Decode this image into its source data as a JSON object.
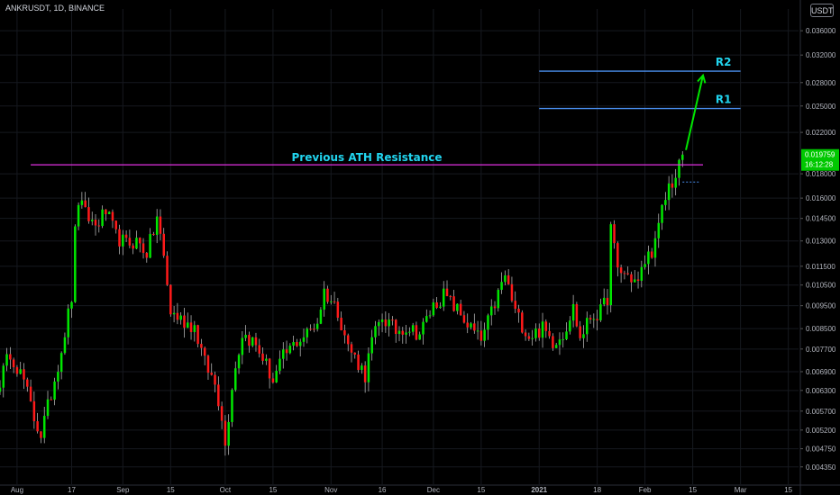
{
  "symbol_line": "ANKRUSDT, 1D, BINANCE",
  "currency": "USDT",
  "colors": {
    "up": "#00e600",
    "down": "#ff1a1a",
    "wick": "#c8c8c8",
    "ath_line": "#e030e0",
    "r_line": "#4a8ff0",
    "annot": "#21d4ee",
    "arrow": "#00e600",
    "price_label_bg": "#00c800",
    "axis_text": "#b2b5be"
  },
  "chart_data": {
    "type": "candlestick",
    "title": "ANKRUSDT, 1D, BINANCE",
    "y_scale": "log",
    "ylim": [
      0.004,
      0.04
    ],
    "xlim": [
      "2020-07-27",
      "2021-03-18"
    ],
    "y_ticks": [
      "0.036000",
      "0.032000",
      "0.028000",
      "0.025000",
      "0.022000",
      "0.019759",
      "0.018000",
      "0.016000",
      "0.014500",
      "0.013000",
      "0.011500",
      "0.010500",
      "0.009500",
      "0.008500",
      "0.007700",
      "0.006900",
      "0.006300",
      "0.005700",
      "0.005200",
      "0.004750",
      "0.004350"
    ],
    "x_ticks": [
      {
        "label": "Aug",
        "date": "2020-08-01"
      },
      {
        "label": "17",
        "date": "2020-08-17"
      },
      {
        "label": "Sep",
        "date": "2020-09-01"
      },
      {
        "label": "15",
        "date": "2020-09-15"
      },
      {
        "label": "Oct",
        "date": "2020-10-01"
      },
      {
        "label": "15",
        "date": "2020-10-15"
      },
      {
        "label": "Nov",
        "date": "2020-11-01"
      },
      {
        "label": "16",
        "date": "2020-11-16"
      },
      {
        "label": "Dec",
        "date": "2020-12-01"
      },
      {
        "label": "15",
        "date": "2020-12-15"
      },
      {
        "label": "2021",
        "date": "2021-01-01"
      },
      {
        "label": "18",
        "date": "2021-01-18"
      },
      {
        "label": "Feb",
        "date": "2021-02-01"
      },
      {
        "label": "15",
        "date": "2021-02-15"
      },
      {
        "label": "Mar",
        "date": "2021-03-01"
      },
      {
        "label": "15",
        "date": "2021-03-15"
      }
    ],
    "last_price": "0.019759",
    "countdown": "16:12:28",
    "current_close_line": 0.0173,
    "price_anchors": [
      [
        "2020-07-27",
        0.0066
      ],
      [
        "2020-07-30",
        0.0076
      ],
      [
        "2020-08-03",
        0.0066
      ],
      [
        "2020-08-06",
        0.0055
      ],
      [
        "2020-08-08",
        0.0051
      ],
      [
        "2020-08-11",
        0.0062
      ],
      [
        "2020-08-14",
        0.0077
      ],
      [
        "2020-08-17",
        0.0099
      ],
      [
        "2020-08-18",
        0.0135
      ],
      [
        "2020-08-19",
        0.0158
      ],
      [
        "2020-08-21",
        0.0148
      ],
      [
        "2020-08-24",
        0.014
      ],
      [
        "2020-08-27",
        0.015
      ],
      [
        "2020-08-30",
        0.0133
      ],
      [
        "2020-09-02",
        0.0128
      ],
      [
        "2020-09-05",
        0.013
      ],
      [
        "2020-09-08",
        0.0123
      ],
      [
        "2020-09-10",
        0.0136
      ],
      [
        "2020-09-11",
        0.0146
      ],
      [
        "2020-09-13",
        0.012
      ],
      [
        "2020-09-15",
        0.0092
      ],
      [
        "2020-09-19",
        0.0088
      ],
      [
        "2020-09-22",
        0.0086
      ],
      [
        "2020-09-25",
        0.0072
      ],
      [
        "2020-09-28",
        0.0065
      ],
      [
        "2020-09-30",
        0.0056
      ],
      [
        "2020-10-01",
        0.0048
      ],
      [
        "2020-10-03",
        0.0065
      ],
      [
        "2020-10-06",
        0.0083
      ],
      [
        "2020-10-09",
        0.008
      ],
      [
        "2020-10-12",
        0.0074
      ],
      [
        "2020-10-15",
        0.0066
      ],
      [
        "2020-10-18",
        0.0074
      ],
      [
        "2020-10-22",
        0.008
      ],
      [
        "2020-10-25",
        0.0083
      ],
      [
        "2020-10-28",
        0.0088
      ],
      [
        "2020-10-30",
        0.0102
      ],
      [
        "2020-11-03",
        0.0093
      ],
      [
        "2020-11-06",
        0.0078
      ],
      [
        "2020-11-09",
        0.0072
      ],
      [
        "2020-11-11",
        0.0068
      ],
      [
        "2020-11-13",
        0.008
      ],
      [
        "2020-11-16",
        0.009
      ],
      [
        "2020-11-20",
        0.0084
      ],
      [
        "2020-11-23",
        0.0086
      ],
      [
        "2020-11-27",
        0.0083
      ],
      [
        "2020-12-01",
        0.0095
      ],
      [
        "2020-12-04",
        0.01
      ],
      [
        "2020-12-08",
        0.0093
      ],
      [
        "2020-12-12",
        0.0085
      ],
      [
        "2020-12-15",
        0.008
      ],
      [
        "2020-12-19",
        0.0096
      ],
      [
        "2020-12-22",
        0.011
      ],
      [
        "2020-12-25",
        0.0092
      ],
      [
        "2020-12-29",
        0.0082
      ],
      [
        "2021-01-02",
        0.0085
      ],
      [
        "2021-01-05",
        0.008
      ],
      [
        "2021-01-08",
        0.0083
      ],
      [
        "2021-01-11",
        0.0094
      ],
      [
        "2021-01-13",
        0.0081
      ],
      [
        "2021-01-16",
        0.009
      ],
      [
        "2021-01-19",
        0.0092
      ],
      [
        "2021-01-21",
        0.0099
      ],
      [
        "2021-01-22",
        0.0138
      ],
      [
        "2021-01-24",
        0.0113
      ],
      [
        "2021-01-27",
        0.011
      ],
      [
        "2021-01-30",
        0.0106
      ],
      [
        "2021-02-01",
        0.0118
      ],
      [
        "2021-02-04",
        0.0128
      ],
      [
        "2021-02-06",
        0.015
      ],
      [
        "2021-02-08",
        0.017
      ],
      [
        "2021-02-10",
        0.0176
      ],
      [
        "2021-02-12",
        0.0198
      ]
    ],
    "annotations": {
      "ath_label": "Previous ATH Resistance",
      "ath_level": 0.0188,
      "r1_label": "R1",
      "r1_level": 0.0247,
      "r2_label": "R2",
      "r2_level": 0.0296
    }
  }
}
